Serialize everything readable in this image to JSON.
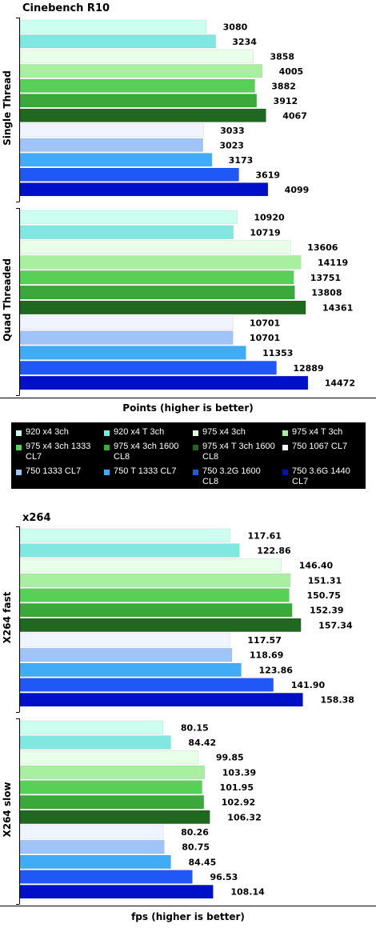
{
  "colors": [
    "#ccfff0",
    "#80e8e0",
    "#e8ffe8",
    "#a8f0a0",
    "#58d058",
    "#3aa83a",
    "#206820",
    "#f0f4ff",
    "#a0c4f8",
    "#40acf8",
    "#2058f8",
    "#0010c8"
  ],
  "legend": [
    "920 x4 3ch",
    "920 x4 T 3ch",
    "975 x4 3ch",
    "975 x4 T 3ch",
    "975 x4 3ch 1333 CL7",
    "975 x4 3ch 1600 CL8",
    "975 x4 T 3ch 1600 CL8",
    "750 1067 CL7",
    "750 1333 CL7",
    "750 T 1333 CL7",
    "750 3.2G 1600 CL8",
    "750 3.6G 1440 CL7"
  ],
  "chart_data": [
    {
      "type": "bar",
      "orientation": "horizontal",
      "title": "Cinebench R10",
      "xlabel": "Points (higher is better)",
      "series_names": [
        "920 x4 3ch",
        "920 x4 T 3ch",
        "975 x4 3ch",
        "975 x4 T 3ch",
        "975 x4 3ch 1333 CL7",
        "975 x4 3ch 1600 CL8",
        "975 x4 T 3ch 1600 CL8",
        "750 1067 CL7",
        "750 1333 CL7",
        "750 T 1333 CL7",
        "750 3.2G 1600 CL8",
        "750 3.6G 1440 CL7"
      ],
      "groups": [
        {
          "name": "Single Thread",
          "values": [
            3080,
            3234,
            3858,
            4005,
            3882,
            3912,
            4067,
            3033,
            3023,
            3173,
            3619,
            4099
          ],
          "labels": [
            "3080",
            "3234",
            "3858",
            "4005",
            "3882",
            "3912",
            "4067",
            "3033",
            "3023",
            "3173",
            "3619",
            "4099"
          ]
        },
        {
          "name": "Quad Threaded",
          "values": [
            10920,
            10719,
            13606,
            14119,
            13751,
            13808,
            14361,
            10701,
            10701,
            11353,
            12889,
            14472
          ],
          "labels": [
            "10920",
            "10719",
            "13606",
            "14119",
            "13751",
            "13808",
            "14361",
            "10701",
            "10701",
            "11353",
            "12889",
            "14472"
          ]
        }
      ]
    },
    {
      "type": "bar",
      "orientation": "horizontal",
      "title": "x264",
      "xlabel": "fps (higher is better)",
      "series_names": [
        "920 x4 3ch",
        "920 x4 T 3ch",
        "975 x4 3ch",
        "975 x4 T 3ch",
        "975 x4 3ch 1333 CL7",
        "975 x4 3ch 1600 CL8",
        "975 x4 T 3ch 1600 CL8",
        "750 1067 CL7",
        "750 1333 CL7",
        "750 T 1333 CL7",
        "750 3.2G 1600 CL8",
        "750 3.6G 1440 CL7"
      ],
      "groups": [
        {
          "name": "X264 fast",
          "values": [
            117.61,
            122.86,
            146.4,
            151.31,
            150.75,
            152.39,
            157.34,
            117.57,
            118.69,
            123.86,
            141.9,
            158.38
          ],
          "labels": [
            "117.61",
            "122.86",
            "146.40",
            "151.31",
            "150.75",
            "152.39",
            "157.34",
            "117.57",
            "118.69",
            "123.86",
            "141.90",
            "158.38"
          ]
        },
        {
          "name": "X264 slow",
          "values": [
            80.15,
            84.42,
            99.85,
            103.39,
            101.95,
            102.92,
            106.32,
            80.26,
            80.75,
            84.45,
            96.53,
            108.14
          ],
          "labels": [
            "80.15",
            "84.42",
            "99.85",
            "103.39",
            "101.95",
            "102.92",
            "106.32",
            "80.26",
            "80.75",
            "84.45",
            "96.53",
            "108.14"
          ]
        }
      ]
    }
  ]
}
